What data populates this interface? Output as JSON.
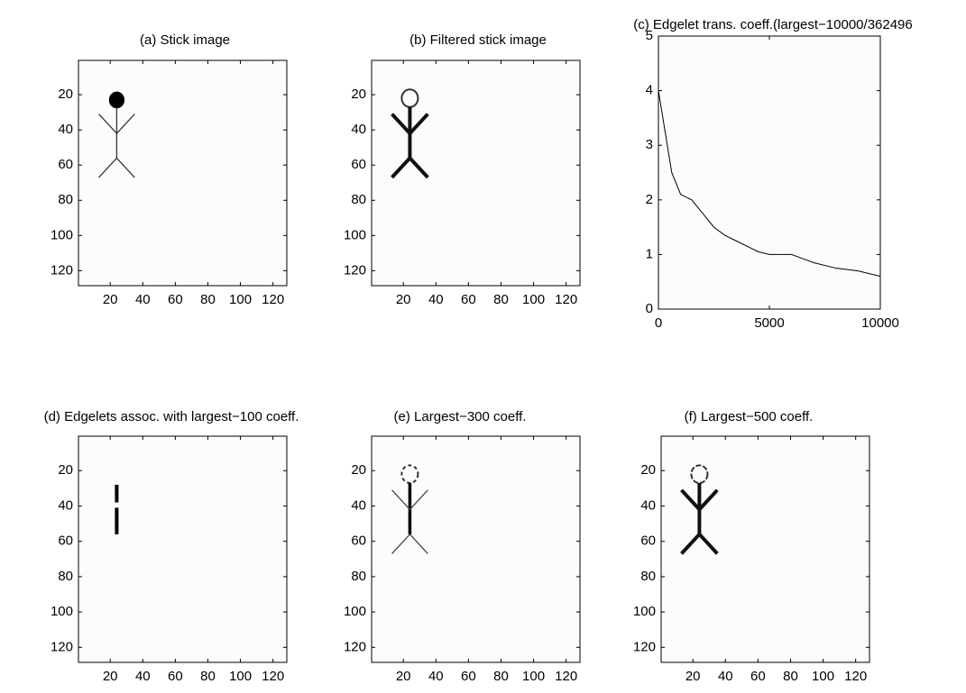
{
  "chart_data": [
    {
      "type": "image",
      "title": "(a) Stick image",
      "xlim": [
        0.5,
        128.5
      ],
      "ylim": [
        128.5,
        0.5
      ],
      "xticks": [
        20,
        40,
        60,
        80,
        100,
        120
      ],
      "yticks": [
        20,
        40,
        60,
        80,
        100,
        120
      ]
    },
    {
      "type": "image",
      "title": "(b) Filtered stick image",
      "xlim": [
        0.5,
        128.5
      ],
      "ylim": [
        128.5,
        0.5
      ],
      "xticks": [
        20,
        40,
        60,
        80,
        100,
        120
      ],
      "yticks": [
        20,
        40,
        60,
        80,
        100,
        120
      ]
    },
    {
      "type": "line",
      "title": "(c) Edgelet trans. coeff.(largest−10000/362496",
      "x": [
        0,
        200,
        400,
        600,
        800,
        1000,
        1500,
        2000,
        2500,
        3000,
        3500,
        4000,
        4500,
        5000,
        6000,
        7000,
        8000,
        9000,
        10000
      ],
      "values": [
        4,
        3.5,
        3,
        2.5,
        2.3,
        2.1,
        2.0,
        1.75,
        1.5,
        1.35,
        1.25,
        1.15,
        1.05,
        1.0,
        1.0,
        0.85,
        0.75,
        0.7,
        0.6
      ],
      "color": "#000000",
      "xlim": [
        0,
        10000
      ],
      "ylim": [
        0,
        5
      ],
      "xticks": [
        0,
        5000,
        10000
      ],
      "yticks": [
        0,
        1,
        2,
        3,
        4,
        5
      ]
    },
    {
      "type": "image",
      "title": "(d) Edgelets assoc. with largest−100 coeff.",
      "xlim": [
        0.5,
        128.5
      ],
      "ylim": [
        128.5,
        0.5
      ],
      "xticks": [
        20,
        40,
        60,
        80,
        100,
        120
      ],
      "yticks": [
        20,
        40,
        60,
        80,
        100,
        120
      ]
    },
    {
      "type": "image",
      "title": "(e) Largest−300 coeff.",
      "xlim": [
        0.5,
        128.5
      ],
      "ylim": [
        128.5,
        0.5
      ],
      "xticks": [
        20,
        40,
        60,
        80,
        100,
        120
      ],
      "yticks": [
        20,
        40,
        60,
        80,
        100,
        120
      ]
    },
    {
      "type": "image",
      "title": "(f) Largest−500 coeff.",
      "xlim": [
        0.5,
        128.5
      ],
      "ylim": [
        128.5,
        0.5
      ],
      "xticks": [
        20,
        40,
        60,
        80,
        100,
        120
      ],
      "yticks": [
        20,
        40,
        60,
        80,
        100,
        120
      ]
    }
  ]
}
